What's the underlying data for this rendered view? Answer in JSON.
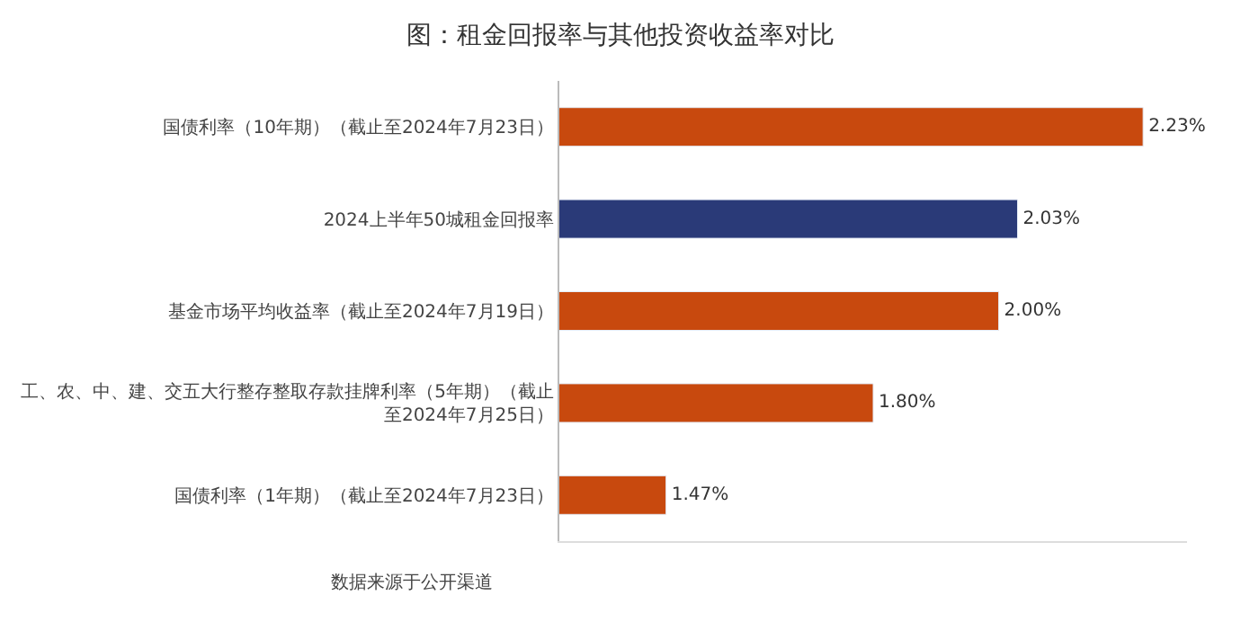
{
  "chart_data": {
    "type": "bar",
    "orientation": "horizontal",
    "title": "图：租金回报率与其他投资收益率对比",
    "categories": [
      "国债利率（10年期）（截止至2024年7月23日）",
      "2024上半年50城租金回报率",
      "基金市场平均收益率（截止至2024年7月19日）",
      "工、农、中、建、交五大行整存整取存款挂牌利率（5年期）（截止至2024年7月25日）",
      "国债利率（1年期）（截止至2024年7月23日）"
    ],
    "values": [
      2.23,
      2.03,
      2.0,
      1.8,
      1.47
    ],
    "colors": [
      "#c8490e",
      "#2a3a78",
      "#c8490e",
      "#c8490e",
      "#c8490e"
    ],
    "value_labels": [
      "2.23%",
      "2.03%",
      "2.00%",
      "1.80%",
      "1.47%"
    ],
    "xlim": [
      1.3,
      2.3
    ],
    "tick_labels": "y",
    "annotations": [
      "数据来源于公开渠道"
    ]
  }
}
